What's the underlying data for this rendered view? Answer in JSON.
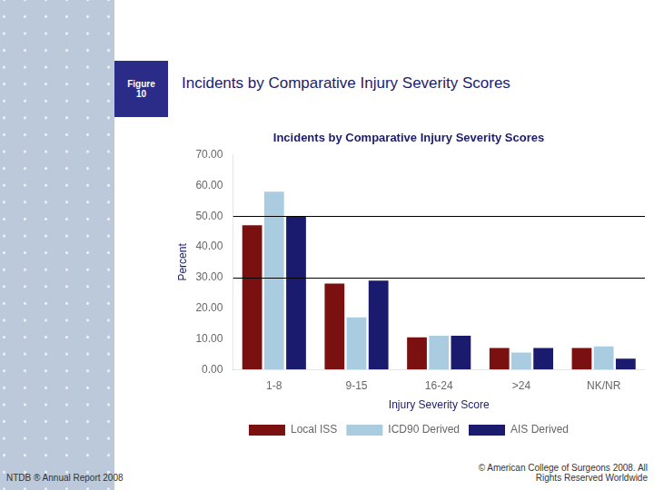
{
  "chart_data": {
    "type": "bar",
    "header_title": "Incidents by Comparative Injury Severity Scores",
    "figure_label": "Figure\n10",
    "title": "Incidents by Comparative Injury Severity Scores",
    "xlabel": "Injury Severity Score",
    "ylabel": "Percent",
    "categories": [
      "1-8",
      "9-15",
      "16-24",
      ">24",
      "NK/NR"
    ],
    "series": [
      {
        "name": "Local ISS",
        "color": "#7B1010",
        "values": [
          47.0,
          28.0,
          10.5,
          7.0,
          7.0
        ]
      },
      {
        "name": "ICD90 Derived",
        "color": "#AACCE0",
        "values": [
          58.0,
          17.0,
          11.0,
          5.5,
          7.5
        ]
      },
      {
        "name": "AIS Derived",
        "color": "#1A1A6E",
        "values": [
          50.0,
          29.0,
          11.0,
          7.0,
          3.5
        ]
      }
    ],
    "hlines": [
      30.0,
      50.0
    ],
    "ylim": [
      0,
      70
    ],
    "yticks": [
      {
        "value": 0,
        "label": "0.00"
      },
      {
        "value": 10,
        "label": "10.00"
      },
      {
        "value": 20,
        "label": "20.00"
      },
      {
        "value": 30,
        "label": "30.00"
      },
      {
        "value": 40,
        "label": "40.00"
      },
      {
        "value": 50,
        "label": "50.00"
      },
      {
        "value": 60,
        "label": "60.00"
      },
      {
        "value": 70,
        "label": "70.00"
      }
    ],
    "grid": false,
    "legend": "bottom",
    "footer_left": "NTDB ® Annual Report 2008",
    "footer_right": "© American College of Surgeons 2008.  All\nRights Reserved Worldwide"
  }
}
